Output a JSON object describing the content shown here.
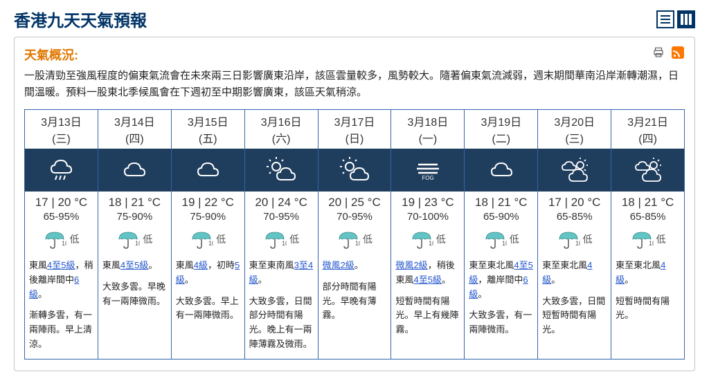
{
  "page": {
    "title": "香港九天天氣預報",
    "overview_label": "天氣概況:",
    "overview_text": "一股清勁至強風程度的偏東氣流會在未來兩三日影響廣東沿岸，該區雲量較多，風勢較大。隨著偏東氣流減弱，週末期間華南沿岸漸轉潮濕，日間溫暖。預料一股東北季候風會在下週初至中期影響廣東，該區天氣稍涼。"
  },
  "colors": {
    "brand_navy": "#003366",
    "icon_bg": "#1f3d5c",
    "card_border": "#3366aa",
    "accent_orange": "#e07800",
    "rss_orange": "#ff7700",
    "link": "#2255cc",
    "text": "#333333"
  },
  "psr_low_label": "低",
  "days": [
    {
      "date": "3月13日",
      "weekday": "(三)",
      "icon": "rain",
      "temp_lo": 17,
      "temp_hi": 20,
      "humidity": "65-95%",
      "psr_grade": "低",
      "wind_segments": [
        {
          "t": "東風",
          "link": false
        },
        {
          "t": "4至5級",
          "link": true
        },
        {
          "t": "，稍後離岸間中",
          "link": false
        },
        {
          "t": "6級",
          "link": true
        },
        {
          "t": "。",
          "link": false
        }
      ],
      "forecast": "漸轉多雲，有一兩陣雨。早上清涼。"
    },
    {
      "date": "3月14日",
      "weekday": "(四)",
      "icon": "cloud",
      "temp_lo": 18,
      "temp_hi": 21,
      "humidity": "75-90%",
      "psr_grade": "低",
      "wind_segments": [
        {
          "t": "東風",
          "link": false
        },
        {
          "t": "4至5級",
          "link": true
        },
        {
          "t": "。",
          "link": false
        }
      ],
      "forecast": "大致多雲。早晚有一兩陣微雨。"
    },
    {
      "date": "3月15日",
      "weekday": "(五)",
      "icon": "cloud",
      "temp_lo": 19,
      "temp_hi": 22,
      "humidity": "75-90%",
      "psr_grade": "低",
      "wind_segments": [
        {
          "t": "東風",
          "link": false
        },
        {
          "t": "4級",
          "link": true
        },
        {
          "t": "，初時",
          "link": false
        },
        {
          "t": "5級",
          "link": true
        },
        {
          "t": "。",
          "link": false
        }
      ],
      "forecast": "大致多雲。早上有一兩陣微雨。"
    },
    {
      "date": "3月16日",
      "weekday": "(六)",
      "icon": "sun-cloud",
      "temp_lo": 20,
      "temp_hi": 24,
      "humidity": "70-95%",
      "psr_grade": "低",
      "wind_segments": [
        {
          "t": "東至東南風",
          "link": false
        },
        {
          "t": "3至4級",
          "link": true
        },
        {
          "t": "。",
          "link": false
        }
      ],
      "forecast": "大致多雲，日間部分時間有陽光。晚上有一兩陣薄霧及微雨。"
    },
    {
      "date": "3月17日",
      "weekday": "(日)",
      "icon": "sun-cloud",
      "temp_lo": 20,
      "temp_hi": 25,
      "humidity": "70-95%",
      "psr_grade": "低",
      "wind_segments": [
        {
          "t": "微風2級",
          "link": true
        },
        {
          "t": "。",
          "link": false
        }
      ],
      "forecast": "部分時間有陽光。早晚有薄霧。"
    },
    {
      "date": "3月18日",
      "weekday": "(一)",
      "icon": "fog",
      "temp_lo": 19,
      "temp_hi": 23,
      "humidity": "70-100%",
      "psr_grade": "低",
      "wind_segments": [
        {
          "t": "微風2級",
          "link": true
        },
        {
          "t": "，稍後東風",
          "link": false
        },
        {
          "t": "4至5級",
          "link": true
        },
        {
          "t": "。",
          "link": false
        }
      ],
      "forecast": "短暫時間有陽光。早上有幾陣霧。"
    },
    {
      "date": "3月19日",
      "weekday": "(二)",
      "icon": "cloud",
      "temp_lo": 18,
      "temp_hi": 21,
      "humidity": "65-90%",
      "psr_grade": "低",
      "wind_segments": [
        {
          "t": "東至東北風",
          "link": false
        },
        {
          "t": "4至5級",
          "link": true
        },
        {
          "t": "，離岸間中",
          "link": false
        },
        {
          "t": "6級",
          "link": true
        },
        {
          "t": "。",
          "link": false
        }
      ],
      "forecast": "大致多雲，有一兩陣微雨。"
    },
    {
      "date": "3月20日",
      "weekday": "(三)",
      "icon": "sun-clouds",
      "temp_lo": 17,
      "temp_hi": 20,
      "humidity": "65-85%",
      "psr_grade": "低",
      "wind_segments": [
        {
          "t": "東至東北風",
          "link": false
        },
        {
          "t": "4級",
          "link": true
        },
        {
          "t": "。",
          "link": false
        }
      ],
      "forecast": "大致多雲，日間短暫時間有陽光。"
    },
    {
      "date": "3月21日",
      "weekday": "(四)",
      "icon": "sun-clouds",
      "temp_lo": 18,
      "temp_hi": 21,
      "humidity": "65-85%",
      "psr_grade": "低",
      "wind_segments": [
        {
          "t": "東至東北風",
          "link": false
        },
        {
          "t": "4級",
          "link": true
        },
        {
          "t": "。",
          "link": false
        }
      ],
      "forecast": "短暫時間有陽光。"
    }
  ]
}
